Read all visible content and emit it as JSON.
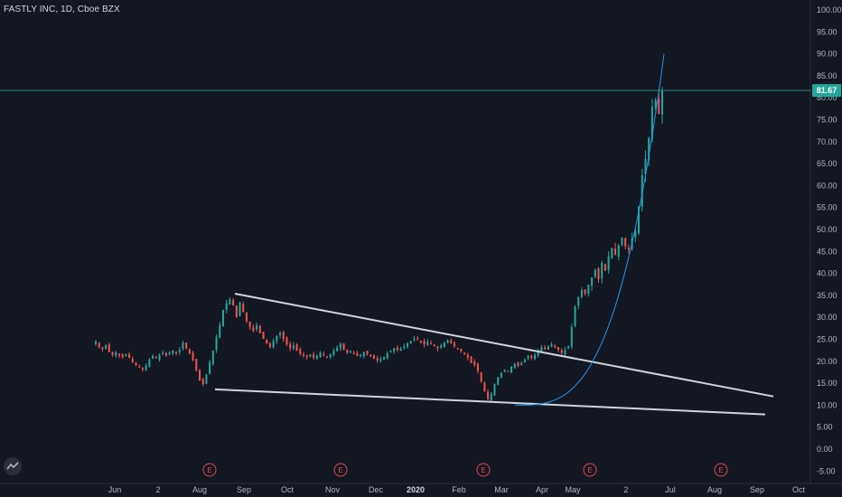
{
  "header": {
    "symbol_line": "FASTLY INC, 1D, Cboe BZX"
  },
  "price_scale": {
    "ticks": [
      "100.00",
      "95.00",
      "90.00",
      "85.00",
      "80.00",
      "75.00",
      "70.00",
      "65.00",
      "60.00",
      "55.00",
      "50.00",
      "45.00",
      "40.00",
      "35.00",
      "30.00",
      "25.00",
      "20.00",
      "15.00",
      "10.00",
      "5.00",
      "0.00",
      "-5.00"
    ],
    "last_price": "81.67",
    "last_price_color": "#26a69a"
  },
  "time_axis": {
    "labels": [
      {
        "text": "Jun",
        "bold": false
      },
      {
        "text": "2",
        "bold": false
      },
      {
        "text": "Aug",
        "bold": false
      },
      {
        "text": "Sep",
        "bold": false
      },
      {
        "text": "Oct",
        "bold": false
      },
      {
        "text": "Nov",
        "bold": false
      },
      {
        "text": "Dec",
        "bold": false
      },
      {
        "text": "2020",
        "bold": true
      },
      {
        "text": "Feb",
        "bold": false
      },
      {
        "text": "Mar",
        "bold": false
      },
      {
        "text": "Apr",
        "bold": false
      },
      {
        "text": "May",
        "bold": false
      },
      {
        "text": "2",
        "bold": false
      },
      {
        "text": "Jul",
        "bold": false
      },
      {
        "text": "Aug",
        "bold": false
      },
      {
        "text": "Sep",
        "bold": false
      },
      {
        "text": "Oct",
        "bold": false
      }
    ]
  },
  "earnings_marker": "E",
  "colors": {
    "up": "#26a69a",
    "down": "#ef5350",
    "background": "#131722",
    "trendline": "#d1d4dc",
    "curve": "#2196f3",
    "earnings": "#e0474c"
  },
  "chart_data": {
    "type": "candlestick",
    "title": "FASTLY INC, 1D, Cboe BZX",
    "ylim": [
      -5,
      100
    ],
    "closes": [
      24.5,
      23.2,
      22.8,
      23.6,
      22.1,
      21.4,
      22.0,
      21.3,
      20.9,
      21.6,
      20.8,
      19.8,
      19.1,
      18.7,
      18.2,
      19.0,
      20.4,
      21.2,
      20.7,
      21.5,
      21.9,
      21.3,
      22.0,
      22.4,
      21.8,
      22.6,
      24.2,
      22.9,
      21.8,
      20.2,
      17.9,
      15.6,
      14.8,
      16.9,
      19.8,
      22.4,
      25.6,
      28.3,
      31.7,
      33.2,
      34.1,
      32.7,
      30.1,
      33.4,
      31.2,
      29.1,
      27.8,
      26.9,
      28.2,
      26.4,
      25.1,
      24.0,
      23.2,
      24.6,
      25.8,
      26.5,
      25.1,
      23.8,
      22.9,
      23.6,
      22.4,
      21.7,
      21.3,
      20.9,
      21.6,
      20.8,
      21.2,
      22.0,
      21.4,
      20.8,
      21.6,
      22.4,
      23.1,
      24.0,
      22.6,
      21.9,
      22.3,
      21.8,
      21.2,
      21.5,
      22.1,
      21.6,
      21.1,
      20.6,
      20.2,
      20.5,
      21.0,
      21.8,
      22.4,
      23.0,
      22.6,
      22.9,
      23.4,
      24.1,
      24.6,
      25.2,
      25.0,
      24.3,
      23.8,
      24.5,
      24.0,
      23.4,
      22.9,
      23.6,
      24.2,
      24.8,
      24.1,
      23.4,
      22.9,
      22.3,
      21.6,
      20.8,
      19.6,
      19.2,
      17.8,
      15.4,
      13.2,
      11.4,
      12.6,
      14.8,
      16.4,
      17.3,
      18.1,
      17.6,
      18.8,
      19.4,
      18.9,
      19.6,
      20.4,
      21.3,
      20.8,
      21.5,
      22.4,
      23.2,
      22.7,
      23.4,
      23.9,
      23.2,
      22.6,
      21.9,
      22.6,
      23.4,
      27.8,
      32.4,
      34.6,
      36.2,
      35.4,
      37.4,
      39.1,
      40.8,
      38.7,
      42.4,
      40.6,
      43.9,
      45.8,
      44.2,
      46.4,
      48.1,
      46.2,
      45.4,
      47.9,
      49.6,
      55.2,
      62.4,
      66.1,
      70.8,
      77.9,
      79.4,
      76.3,
      81.67
    ],
    "support_line": {
      "from": {
        "date": "Aug 2019",
        "price": 13.6
      },
      "to": {
        "date": "Sep 2020",
        "price": 7.9
      }
    },
    "resistance_line": {
      "from": {
        "date": "Sep 2019",
        "price": 35.4
      },
      "to": {
        "date": "Sep 2020",
        "price": 12.0
      }
    }
  }
}
